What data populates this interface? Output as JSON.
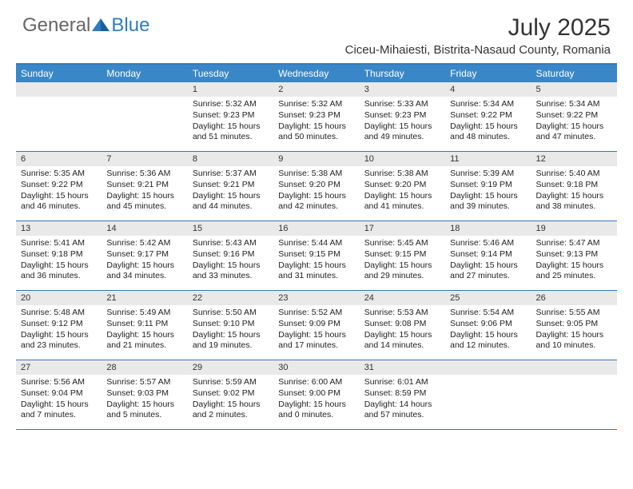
{
  "logo": {
    "general": "General",
    "blue": "Blue"
  },
  "title": "July 2025",
  "location": "Ciceu-Mihaiesti, Bistrita-Nasaud County, Romania",
  "colors": {
    "header_bg": "#3a87c7",
    "border": "#2f7bbf",
    "daynum_bg": "#e9e9e9",
    "text": "#222222",
    "logo_gray": "#666666",
    "logo_blue": "#2f7bbf"
  },
  "day_names": [
    "Sunday",
    "Monday",
    "Tuesday",
    "Wednesday",
    "Thursday",
    "Friday",
    "Saturday"
  ],
  "weeks": [
    [
      null,
      null,
      {
        "n": "1",
        "sr": "5:32 AM",
        "ss": "9:23 PM",
        "dl": "15 hours and 51 minutes."
      },
      {
        "n": "2",
        "sr": "5:32 AM",
        "ss": "9:23 PM",
        "dl": "15 hours and 50 minutes."
      },
      {
        "n": "3",
        "sr": "5:33 AM",
        "ss": "9:23 PM",
        "dl": "15 hours and 49 minutes."
      },
      {
        "n": "4",
        "sr": "5:34 AM",
        "ss": "9:22 PM",
        "dl": "15 hours and 48 minutes."
      },
      {
        "n": "5",
        "sr": "5:34 AM",
        "ss": "9:22 PM",
        "dl": "15 hours and 47 minutes."
      }
    ],
    [
      {
        "n": "6",
        "sr": "5:35 AM",
        "ss": "9:22 PM",
        "dl": "15 hours and 46 minutes."
      },
      {
        "n": "7",
        "sr": "5:36 AM",
        "ss": "9:21 PM",
        "dl": "15 hours and 45 minutes."
      },
      {
        "n": "8",
        "sr": "5:37 AM",
        "ss": "9:21 PM",
        "dl": "15 hours and 44 minutes."
      },
      {
        "n": "9",
        "sr": "5:38 AM",
        "ss": "9:20 PM",
        "dl": "15 hours and 42 minutes."
      },
      {
        "n": "10",
        "sr": "5:38 AM",
        "ss": "9:20 PM",
        "dl": "15 hours and 41 minutes."
      },
      {
        "n": "11",
        "sr": "5:39 AM",
        "ss": "9:19 PM",
        "dl": "15 hours and 39 minutes."
      },
      {
        "n": "12",
        "sr": "5:40 AM",
        "ss": "9:18 PM",
        "dl": "15 hours and 38 minutes."
      }
    ],
    [
      {
        "n": "13",
        "sr": "5:41 AM",
        "ss": "9:18 PM",
        "dl": "15 hours and 36 minutes."
      },
      {
        "n": "14",
        "sr": "5:42 AM",
        "ss": "9:17 PM",
        "dl": "15 hours and 34 minutes."
      },
      {
        "n": "15",
        "sr": "5:43 AM",
        "ss": "9:16 PM",
        "dl": "15 hours and 33 minutes."
      },
      {
        "n": "16",
        "sr": "5:44 AM",
        "ss": "9:15 PM",
        "dl": "15 hours and 31 minutes."
      },
      {
        "n": "17",
        "sr": "5:45 AM",
        "ss": "9:15 PM",
        "dl": "15 hours and 29 minutes."
      },
      {
        "n": "18",
        "sr": "5:46 AM",
        "ss": "9:14 PM",
        "dl": "15 hours and 27 minutes."
      },
      {
        "n": "19",
        "sr": "5:47 AM",
        "ss": "9:13 PM",
        "dl": "15 hours and 25 minutes."
      }
    ],
    [
      {
        "n": "20",
        "sr": "5:48 AM",
        "ss": "9:12 PM",
        "dl": "15 hours and 23 minutes."
      },
      {
        "n": "21",
        "sr": "5:49 AM",
        "ss": "9:11 PM",
        "dl": "15 hours and 21 minutes."
      },
      {
        "n": "22",
        "sr": "5:50 AM",
        "ss": "9:10 PM",
        "dl": "15 hours and 19 minutes."
      },
      {
        "n": "23",
        "sr": "5:52 AM",
        "ss": "9:09 PM",
        "dl": "15 hours and 17 minutes."
      },
      {
        "n": "24",
        "sr": "5:53 AM",
        "ss": "9:08 PM",
        "dl": "15 hours and 14 minutes."
      },
      {
        "n": "25",
        "sr": "5:54 AM",
        "ss": "9:06 PM",
        "dl": "15 hours and 12 minutes."
      },
      {
        "n": "26",
        "sr": "5:55 AM",
        "ss": "9:05 PM",
        "dl": "15 hours and 10 minutes."
      }
    ],
    [
      {
        "n": "27",
        "sr": "5:56 AM",
        "ss": "9:04 PM",
        "dl": "15 hours and 7 minutes."
      },
      {
        "n": "28",
        "sr": "5:57 AM",
        "ss": "9:03 PM",
        "dl": "15 hours and 5 minutes."
      },
      {
        "n": "29",
        "sr": "5:59 AM",
        "ss": "9:02 PM",
        "dl": "15 hours and 2 minutes."
      },
      {
        "n": "30",
        "sr": "6:00 AM",
        "ss": "9:00 PM",
        "dl": "15 hours and 0 minutes."
      },
      {
        "n": "31",
        "sr": "6:01 AM",
        "ss": "8:59 PM",
        "dl": "14 hours and 57 minutes."
      },
      null,
      null
    ]
  ],
  "labels": {
    "sunrise": "Sunrise: ",
    "sunset": "Sunset: ",
    "daylight": "Daylight: "
  }
}
